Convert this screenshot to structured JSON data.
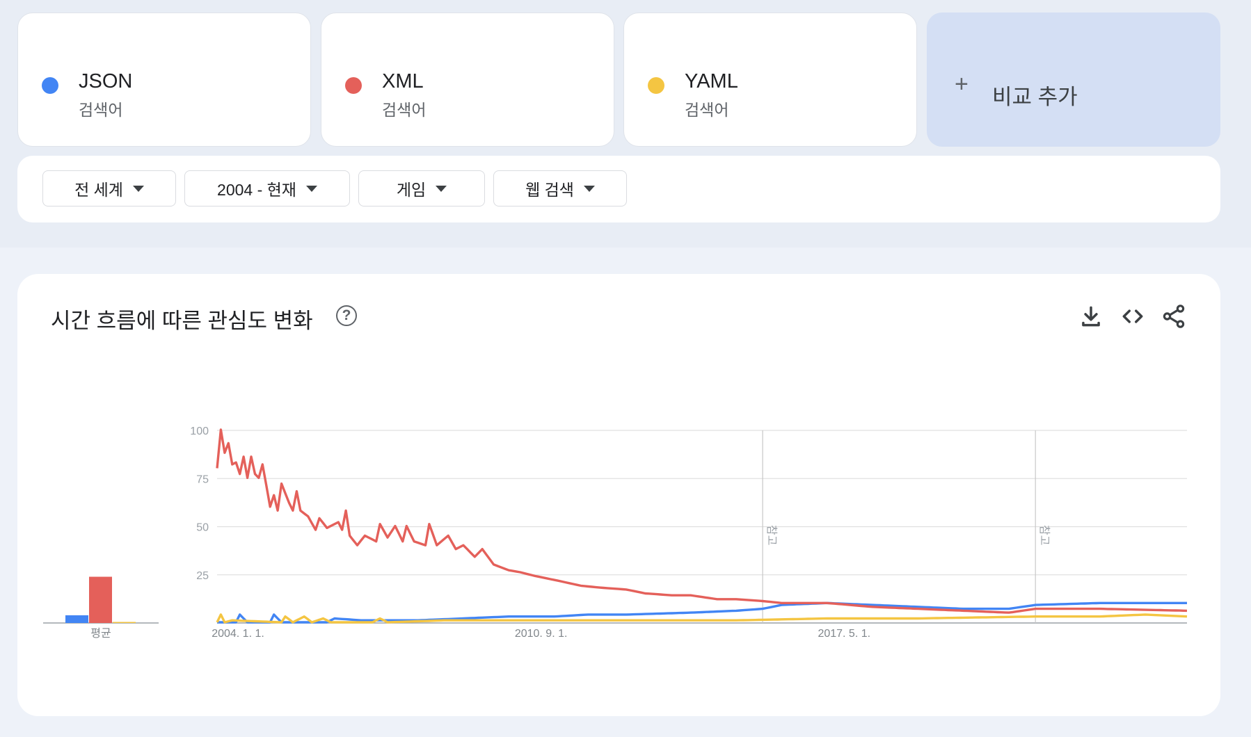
{
  "terms": [
    {
      "name": "JSON",
      "type": "검색어",
      "color": "#4285f4"
    },
    {
      "name": "XML",
      "type": "검색어",
      "color": "#e4605a"
    },
    {
      "name": "YAML",
      "type": "검색어",
      "color": "#f4c542"
    }
  ],
  "add_compare": {
    "icon": "+",
    "label": "비교 추가"
  },
  "filters": {
    "region": "전 세계",
    "period": "2004 - 현재",
    "category": "게임",
    "search_type": "웹 검색"
  },
  "chart_card": {
    "title": "시간 흐름에 따른 관심도 변화",
    "help_icon": "?",
    "tool_icons": [
      "download-icon",
      "embed-icon",
      "share-icon"
    ]
  },
  "chart_data": {
    "type": "line",
    "title": "시간 흐름에 따른 관심도 변화",
    "ylim": [
      0,
      100
    ],
    "y_ticks": [
      100,
      75,
      50,
      25
    ],
    "x_tick_labels": [
      "2004. 1. 1.",
      "2010. 9. 1.",
      "2017. 5. 1."
    ],
    "x_range": [
      "2004-01",
      "2025-05"
    ],
    "grid": true,
    "average_bars": {
      "label": "평균",
      "values": [
        4,
        24,
        0.5
      ]
    },
    "notes": [
      {
        "label": "참고",
        "date": "2016-01"
      },
      {
        "label": "참고",
        "date": "2022-01"
      }
    ],
    "sample_step_months": 1,
    "series": [
      {
        "name": "JSON",
        "color": "#4285f4",
        "keyframes": [
          [
            "2004-01",
            0
          ],
          [
            "2004-06",
            0
          ],
          [
            "2004-07",
            4
          ],
          [
            "2004-09",
            0
          ],
          [
            "2005-03",
            0
          ],
          [
            "2005-04",
            4
          ],
          [
            "2005-06",
            0
          ],
          [
            "2006-06",
            0
          ],
          [
            "2006-08",
            2
          ],
          [
            "2007-03",
            1
          ],
          [
            "2007-08",
            1
          ],
          [
            "2008-06",
            1
          ],
          [
            "2009-06",
            2
          ],
          [
            "2010-06",
            3
          ],
          [
            "2011-06",
            3
          ],
          [
            "2012-03",
            4
          ],
          [
            "2013-01",
            4
          ],
          [
            "2014-06",
            5
          ],
          [
            "2015-06",
            6
          ],
          [
            "2016-01",
            7
          ],
          [
            "2016-06",
            9
          ],
          [
            "2017-06",
            10
          ],
          [
            "2018-06",
            9
          ],
          [
            "2019-06",
            8
          ],
          [
            "2020-06",
            7
          ],
          [
            "2021-06",
            7
          ],
          [
            "2022-01",
            9
          ],
          [
            "2023-06",
            10
          ],
          [
            "2025-05",
            10
          ]
        ]
      },
      {
        "name": "XML",
        "color": "#e4605a",
        "keyframes": [
          [
            "2004-01",
            80
          ],
          [
            "2004-02",
            100
          ],
          [
            "2004-03",
            88
          ],
          [
            "2004-04",
            93
          ],
          [
            "2004-05",
            82
          ],
          [
            "2004-06",
            83
          ],
          [
            "2004-07",
            77
          ],
          [
            "2004-08",
            86
          ],
          [
            "2004-09",
            75
          ],
          [
            "2004-10",
            86
          ],
          [
            "2004-11",
            77
          ],
          [
            "2004-12",
            75
          ],
          [
            "2005-01",
            82
          ],
          [
            "2005-03",
            60
          ],
          [
            "2005-04",
            66
          ],
          [
            "2005-05",
            58
          ],
          [
            "2005-06",
            72
          ],
          [
            "2005-08",
            62
          ],
          [
            "2005-09",
            58
          ],
          [
            "2005-10",
            68
          ],
          [
            "2005-11",
            58
          ],
          [
            "2006-01",
            55
          ],
          [
            "2006-03",
            48
          ],
          [
            "2006-04",
            54
          ],
          [
            "2006-06",
            49
          ],
          [
            "2006-09",
            52
          ],
          [
            "2006-10",
            48
          ],
          [
            "2006-11",
            58
          ],
          [
            "2006-12",
            45
          ],
          [
            "2007-02",
            40
          ],
          [
            "2007-04",
            45
          ],
          [
            "2007-07",
            42
          ],
          [
            "2007-08",
            51
          ],
          [
            "2007-10",
            44
          ],
          [
            "2007-12",
            50
          ],
          [
            "2008-02",
            42
          ],
          [
            "2008-03",
            50
          ],
          [
            "2008-05",
            42
          ],
          [
            "2008-08",
            40
          ],
          [
            "2008-09",
            51
          ],
          [
            "2008-11",
            40
          ],
          [
            "2009-02",
            45
          ],
          [
            "2009-04",
            38
          ],
          [
            "2009-06",
            40
          ],
          [
            "2009-09",
            34
          ],
          [
            "2009-11",
            38
          ],
          [
            "2010-02",
            30
          ],
          [
            "2010-06",
            27
          ],
          [
            "2010-09",
            26
          ],
          [
            "2011-01",
            24
          ],
          [
            "2011-06",
            22
          ],
          [
            "2012-01",
            19
          ],
          [
            "2012-06",
            18
          ],
          [
            "2013-01",
            17
          ],
          [
            "2013-06",
            15
          ],
          [
            "2014-01",
            14
          ],
          [
            "2014-06",
            14
          ],
          [
            "2015-01",
            12
          ],
          [
            "2015-06",
            12
          ],
          [
            "2016-01",
            11
          ],
          [
            "2016-06",
            10
          ],
          [
            "2017-06",
            10
          ],
          [
            "2018-06",
            8
          ],
          [
            "2019-06",
            7
          ],
          [
            "2020-06",
            6
          ],
          [
            "2021-06",
            5
          ],
          [
            "2022-01",
            7
          ],
          [
            "2023-06",
            7
          ],
          [
            "2025-05",
            6
          ]
        ]
      },
      {
        "name": "YAML",
        "color": "#f4c542",
        "keyframes": [
          [
            "2004-01",
            0
          ],
          [
            "2004-02",
            4
          ],
          [
            "2004-03",
            0
          ],
          [
            "2004-05",
            1
          ],
          [
            "2005-06",
            0
          ],
          [
            "2005-07",
            3
          ],
          [
            "2005-09",
            0
          ],
          [
            "2005-12",
            3
          ],
          [
            "2006-02",
            0
          ],
          [
            "2006-05",
            2
          ],
          [
            "2006-07",
            0
          ],
          [
            "2007-06",
            0
          ],
          [
            "2007-08",
            2
          ],
          [
            "2007-10",
            0
          ],
          [
            "2009-01",
            1
          ],
          [
            "2011-06",
            1
          ],
          [
            "2013-01",
            1
          ],
          [
            "2015-06",
            1
          ],
          [
            "2017-06",
            2
          ],
          [
            "2019-06",
            2
          ],
          [
            "2022-01",
            3
          ],
          [
            "2023-06",
            3
          ],
          [
            "2024-06",
            4
          ],
          [
            "2025-05",
            3
          ]
        ]
      }
    ]
  }
}
